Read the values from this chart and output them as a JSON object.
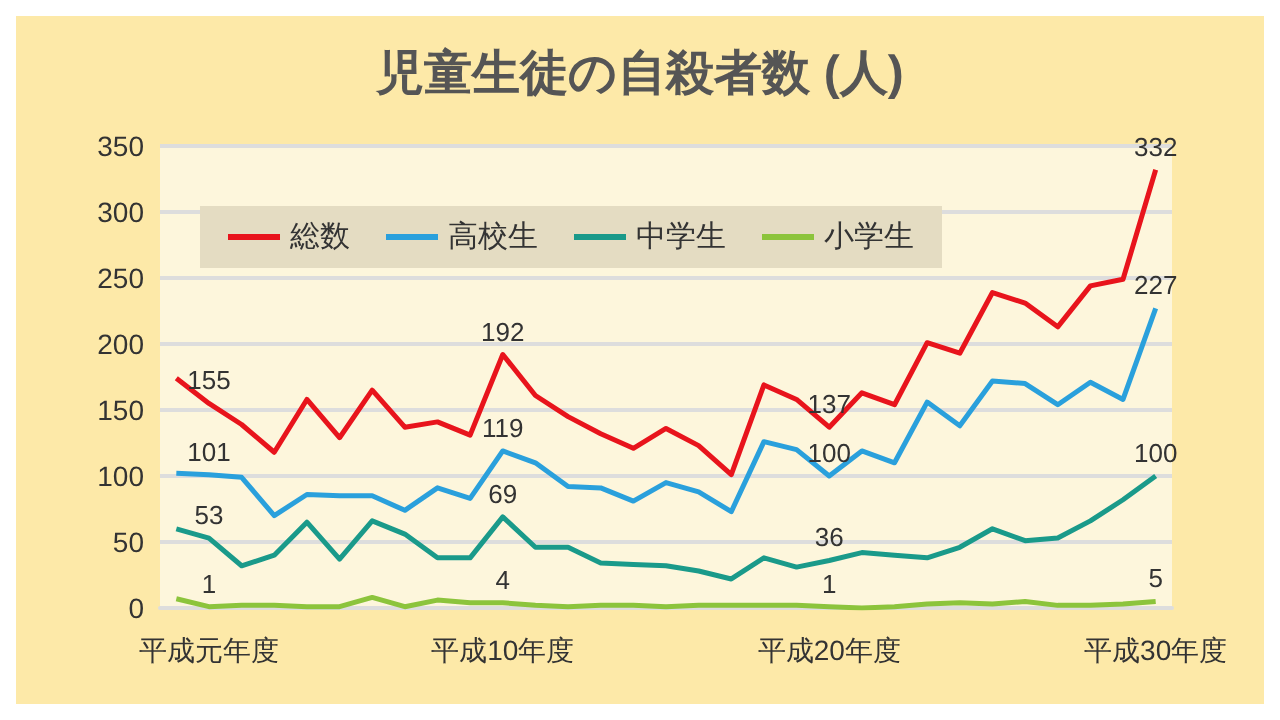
{
  "chart_data": {
    "type": "line",
    "title": "児童生徒の自殺者数 (人)",
    "categories": [
      null,
      "平成元年度",
      null,
      null,
      null,
      null,
      null,
      null,
      null,
      null,
      "平成10年度",
      null,
      null,
      null,
      null,
      null,
      null,
      null,
      null,
      null,
      "平成20年度",
      null,
      null,
      null,
      null,
      null,
      null,
      null,
      null,
      null,
      "平成30年度"
    ],
    "series": [
      {
        "name": "総数",
        "color": "#e8141c",
        "values": [
          174,
          155,
          139,
          118,
          158,
          129,
          165,
          137,
          141,
          131,
          192,
          161,
          145,
          132,
          121,
          136,
          123,
          101,
          169,
          158,
          137,
          163,
          154,
          201,
          193,
          239,
          231,
          213,
          244,
          249,
          332
        ],
        "value_labels": [
          null,
          "155",
          null,
          null,
          null,
          null,
          null,
          null,
          null,
          null,
          "192",
          null,
          null,
          null,
          null,
          null,
          null,
          null,
          null,
          null,
          "137",
          null,
          null,
          null,
          null,
          null,
          null,
          null,
          null,
          null,
          "332"
        ]
      },
      {
        "name": "高校生",
        "color": "#2aa0dc",
        "values": [
          102,
          101,
          99,
          70,
          86,
          85,
          85,
          74,
          91,
          83,
          119,
          110,
          92,
          91,
          81,
          95,
          88,
          73,
          126,
          120,
          100,
          119,
          110,
          156,
          138,
          172,
          170,
          154,
          171,
          158,
          227
        ],
        "value_labels": [
          null,
          "101",
          null,
          null,
          null,
          null,
          null,
          null,
          null,
          null,
          "119",
          null,
          null,
          null,
          null,
          null,
          null,
          null,
          null,
          null,
          "100",
          null,
          null,
          null,
          null,
          null,
          null,
          null,
          null,
          null,
          "227"
        ]
      },
      {
        "name": "中学生",
        "color": "#1a9a8a",
        "values": [
          60,
          53,
          32,
          40,
          65,
          37,
          66,
          56,
          38,
          38,
          69,
          46,
          46,
          34,
          33,
          32,
          28,
          22,
          38,
          31,
          36,
          42,
          40,
          38,
          46,
          60,
          51,
          53,
          66,
          82,
          100
        ],
        "value_labels": [
          null,
          "53",
          null,
          null,
          null,
          null,
          null,
          null,
          null,
          null,
          "69",
          null,
          null,
          null,
          null,
          null,
          null,
          null,
          null,
          null,
          "36",
          null,
          null,
          null,
          null,
          null,
          null,
          null,
          null,
          null,
          "100"
        ]
      },
      {
        "name": "小学生",
        "color": "#8cc43c",
        "values": [
          7,
          1,
          2,
          2,
          1,
          1,
          8,
          1,
          6,
          4,
          4,
          2,
          1,
          2,
          2,
          1,
          2,
          2,
          2,
          2,
          1,
          0,
          1,
          3,
          4,
          3,
          5,
          2,
          2,
          3,
          5
        ],
        "value_labels": [
          null,
          "1",
          null,
          null,
          null,
          null,
          null,
          null,
          null,
          null,
          "4",
          null,
          null,
          null,
          null,
          null,
          null,
          null,
          null,
          null,
          "1",
          null,
          null,
          null,
          null,
          null,
          null,
          null,
          null,
          null,
          "5"
        ]
      }
    ],
    "ylim": [
      0,
      350
    ],
    "yticks": [
      0,
      50,
      100,
      150,
      200,
      250,
      300,
      350
    ],
    "grid": "y",
    "legend": "top left"
  }
}
